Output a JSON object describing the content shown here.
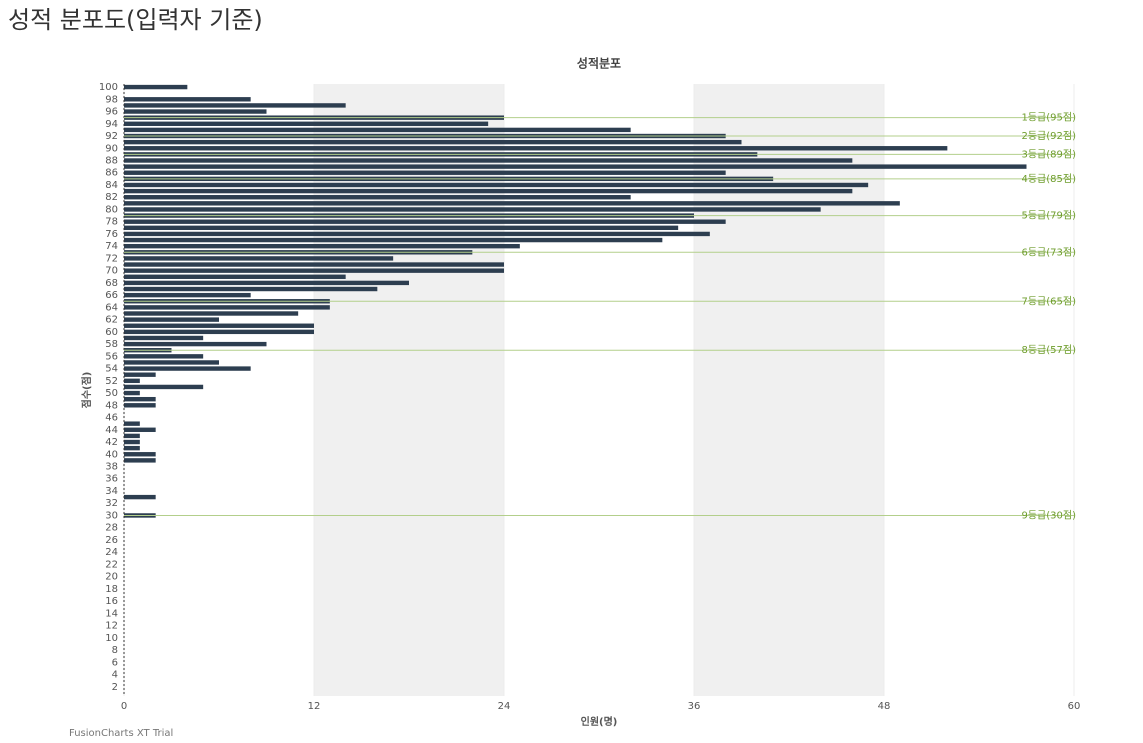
{
  "page_title": "성적 분포도(입력자 기준)",
  "footer": "FusionCharts XT Trial",
  "chart_data": {
    "type": "hbar",
    "title": "성적분포",
    "x_label": "인원(명)",
    "y_label": "점수(점)",
    "color": "#2d3e50",
    "categories": [
      "100",
      null,
      "98",
      null,
      "96",
      null,
      "94",
      null,
      "92",
      null,
      "90",
      null,
      "88",
      null,
      "86",
      null,
      "84",
      null,
      "82",
      null,
      "80",
      null,
      "78",
      null,
      "76",
      null,
      "74",
      null,
      "72",
      null,
      "70",
      null,
      "68",
      null,
      "66",
      null,
      "64",
      null,
      "62",
      null,
      "60",
      null,
      "58",
      null,
      "56",
      null,
      "54",
      null,
      "52",
      null,
      "50",
      null,
      "48",
      null,
      "46",
      null,
      "44",
      null,
      "42",
      null,
      "40",
      null,
      "38",
      null,
      "36",
      null,
      "34",
      null,
      "32",
      null,
      "30",
      null,
      "28",
      null,
      "26",
      null,
      "24",
      null,
      "22",
      null,
      "20",
      null,
      "18",
      null,
      "16",
      null,
      "14",
      null,
      "12",
      null,
      "10",
      null,
      "8",
      null,
      "6",
      null,
      "4",
      null,
      "2",
      null
    ],
    "values": [
      4,
      0,
      8,
      14,
      9,
      24,
      23,
      32,
      38,
      39,
      52,
      40,
      46,
      57,
      38,
      41,
      47,
      46,
      32,
      49,
      44,
      36,
      38,
      35,
      37,
      34,
      25,
      22,
      17,
      24,
      24,
      14,
      18,
      16,
      8,
      13,
      13,
      11,
      6,
      12,
      12,
      5,
      9,
      3,
      5,
      6,
      8,
      2,
      1,
      5,
      1,
      2,
      2,
      0,
      0,
      1,
      2,
      1,
      1,
      1,
      2,
      2,
      0,
      0,
      0,
      0,
      0,
      2,
      0,
      0,
      2,
      0,
      0,
      0,
      0,
      0,
      0,
      0,
      0,
      0,
      0,
      0,
      0,
      0,
      0,
      0,
      0,
      0,
      0,
      0,
      0,
      0,
      0,
      0,
      0,
      0,
      0,
      0,
      0,
      0
    ],
    "xlim": [
      0,
      60
    ],
    "xticks": [
      0,
      12,
      24,
      36,
      48,
      60
    ],
    "alternate_bands": true,
    "trendlines": [
      {
        "value": 95,
        "label": "1등급(95점)"
      },
      {
        "value": 92,
        "label": "2등급(92점)"
      },
      {
        "value": 89,
        "label": "3등급(89점)"
      },
      {
        "value": 85,
        "label": "4등급(85점)"
      },
      {
        "value": 79,
        "label": "5등급(79점)"
      },
      {
        "value": 73,
        "label": "6등급(73점)"
      },
      {
        "value": 65,
        "label": "7등급(65점)"
      },
      {
        "value": 57,
        "label": "8등급(57점)"
      },
      {
        "value": 30,
        "label": "9등급(30점)"
      }
    ],
    "trend_color": "#6e9d2c"
  }
}
